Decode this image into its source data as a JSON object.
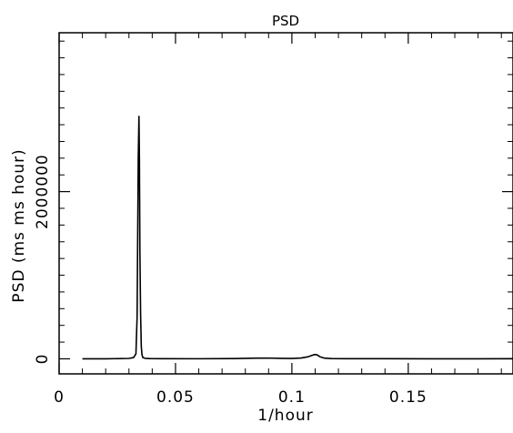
{
  "chart_data": {
    "type": "line",
    "title": "PSD",
    "xlabel": "1/hour",
    "ylabel": "PSD (ms ms hour)",
    "xlim": [
      0,
      0.195
    ],
    "ylim": [
      -180000,
      3900000
    ],
    "x_ticks": [
      0,
      0.05,
      0.1,
      0.15
    ],
    "x_tick_labels": [
      "0",
      "0.05",
      "0.1",
      "0.15"
    ],
    "y_ticks": [
      0,
      2000000
    ],
    "y_tick_labels": [
      "0",
      "2000000"
    ],
    "grid": false,
    "series": [
      {
        "x": [
          0.01,
          0.02,
          0.03,
          0.032,
          0.033,
          0.0335,
          0.034,
          0.0343,
          0.0345,
          0.0347,
          0.035,
          0.0353,
          0.0356,
          0.036,
          0.037,
          0.039,
          0.045,
          0.06,
          0.075,
          0.085,
          0.09,
          0.095,
          0.1,
          0.104,
          0.107,
          0.109,
          0.11,
          0.111,
          0.112,
          0.114,
          0.117,
          0.125,
          0.14,
          0.16,
          0.18,
          0.195
        ],
        "y": [
          0,
          0,
          5000,
          15000,
          60000,
          500000,
          2400000,
          2900000,
          2400000,
          1300000,
          550000,
          150000,
          50000,
          15000,
          6000,
          3000,
          1500,
          800,
          3000,
          8000,
          9000,
          6000,
          4000,
          10000,
          25000,
          45000,
          52000,
          45000,
          25000,
          8000,
          3000,
          1500,
          1000,
          700,
          500,
          2000
        ]
      }
    ]
  }
}
